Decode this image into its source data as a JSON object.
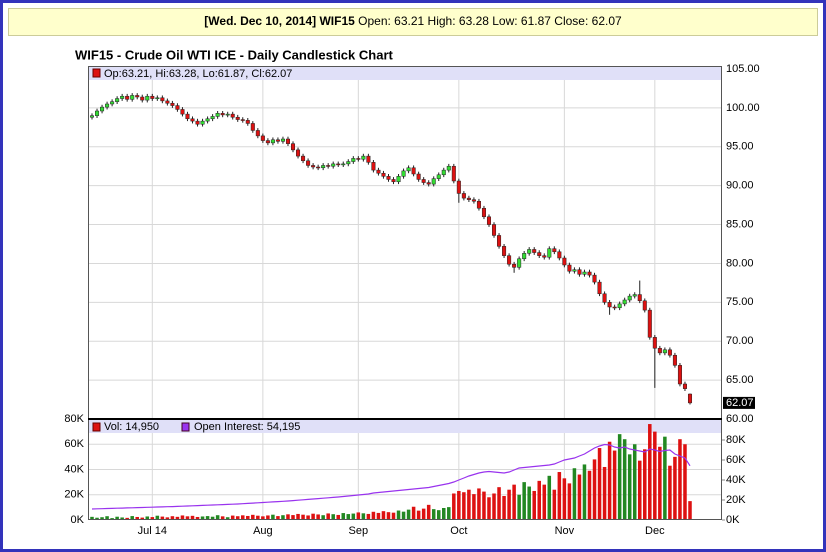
{
  "header": {
    "date_symbol": "[Wed. Dec 10, 2014] WIF15",
    "quote": "Open: 63.21 High: 63.28 Low: 61.87 Close: 62.07"
  },
  "chart_data": {
    "type": "candlestick",
    "title": "WIF15 - Crude Oil WTI ICE - Daily Candlestick Chart",
    "legend_text": "Op:63.21, Hi:63.28, Lo:61.87, Cl:62.07",
    "up_color": "#33dd33",
    "down_color": "#dd1111",
    "grid": true,
    "categories": [
      null,
      null,
      null,
      null,
      null,
      null,
      null,
      null,
      null,
      null,
      null,
      null,
      "Jul 14",
      null,
      null,
      null,
      null,
      null,
      null,
      null,
      null,
      null,
      null,
      null,
      null,
      null,
      null,
      null,
      null,
      null,
      null,
      null,
      null,
      null,
      "Aug",
      null,
      null,
      null,
      null,
      null,
      null,
      null,
      null,
      null,
      null,
      null,
      null,
      null,
      null,
      null,
      null,
      null,
      null,
      "Sep",
      null,
      null,
      null,
      null,
      null,
      null,
      null,
      null,
      null,
      null,
      null,
      null,
      null,
      null,
      null,
      null,
      null,
      null,
      null,
      "Oct",
      null,
      null,
      null,
      null,
      null,
      null,
      null,
      null,
      null,
      null,
      null,
      null,
      null,
      null,
      null,
      null,
      null,
      null,
      null,
      null,
      "Nov",
      null,
      null,
      null,
      null,
      null,
      null,
      null,
      null,
      null,
      null,
      null,
      null,
      null,
      null,
      null,
      null,
      null,
      "Dec",
      null,
      null,
      null,
      null,
      null,
      null,
      null
    ],
    "open": [
      98.8,
      99.0,
      99.6,
      100.1,
      100.5,
      100.8,
      101.2,
      101.5,
      101.1,
      101.6,
      101.4,
      101.0,
      101.5,
      101.2,
      101.3,
      100.9,
      100.6,
      100.3,
      99.8,
      99.2,
      98.6,
      98.3,
      97.9,
      98.3,
      98.6,
      98.9,
      99.3,
      99.1,
      99.2,
      98.8,
      98.5,
      98.4,
      98.0,
      97.1,
      96.4,
      95.8,
      95.5,
      95.9,
      95.7,
      96.0,
      95.4,
      94.6,
      93.8,
      93.2,
      92.6,
      92.4,
      92.3,
      92.6,
      92.5,
      92.8,
      92.7,
      92.8,
      93.1,
      93.5,
      93.4,
      93.8,
      93.0,
      92.0,
      91.6,
      91.2,
      90.8,
      90.5,
      91.2,
      91.9,
      92.3,
      91.5,
      90.8,
      90.4,
      90.2,
      90.9,
      91.4,
      92.0,
      92.5,
      90.6,
      89.0,
      88.4,
      88.2,
      88.0,
      87.1,
      86.0,
      85.0,
      83.6,
      82.2,
      81.0,
      79.9,
      79.5,
      80.6,
      81.3,
      81.8,
      81.4,
      81.0,
      80.8,
      81.9,
      81.5,
      80.7,
      79.8,
      79.0,
      79.2,
      78.6,
      78.9,
      78.5,
      77.6,
      76.1,
      75.0,
      74.4,
      74.3,
      74.8,
      75.3,
      75.8,
      76.0,
      75.2,
      74.0,
      70.5,
      69.1,
      68.5,
      68.9,
      68.2,
      66.9,
      64.5,
      63.21
    ],
    "high": [
      99.3,
      99.9,
      100.4,
      100.8,
      101.1,
      101.5,
      101.8,
      101.8,
      101.9,
      101.9,
      101.7,
      101.8,
      101.8,
      101.6,
      101.6,
      101.2,
      100.9,
      100.6,
      100.1,
      99.5,
      98.9,
      98.6,
      98.6,
      98.9,
      99.2,
      99.6,
      99.6,
      99.5,
      99.5,
      99.1,
      98.8,
      98.7,
      98.3,
      97.4,
      96.7,
      96.1,
      96.2,
      96.2,
      96.3,
      96.3,
      95.7,
      94.9,
      94.1,
      93.5,
      92.9,
      92.7,
      92.9,
      92.9,
      93.1,
      93.1,
      93.1,
      93.4,
      93.8,
      93.8,
      94.1,
      94.1,
      93.3,
      92.3,
      91.9,
      91.5,
      91.1,
      91.5,
      92.2,
      92.6,
      92.6,
      91.8,
      91.1,
      90.7,
      91.2,
      91.7,
      92.3,
      92.8,
      92.8,
      90.9,
      89.3,
      88.7,
      88.5,
      88.3,
      87.4,
      86.3,
      85.3,
      83.9,
      82.5,
      81.3,
      80.2,
      80.9,
      81.6,
      82.1,
      82.1,
      81.7,
      81.3,
      82.2,
      82.2,
      81.8,
      81.0,
      80.1,
      79.5,
      79.5,
      79.2,
      79.2,
      78.8,
      77.9,
      76.4,
      75.3,
      74.7,
      75.1,
      75.6,
      76.1,
      76.3,
      77.8,
      75.5,
      74.3,
      70.8,
      69.4,
      69.2,
      69.2,
      68.5,
      67.2,
      64.8,
      63.28
    ],
    "low": [
      98.5,
      98.7,
      99.3,
      99.8,
      100.2,
      100.5,
      100.9,
      100.8,
      100.8,
      101.1,
      100.7,
      100.7,
      100.9,
      100.9,
      100.6,
      100.3,
      100.0,
      99.5,
      98.9,
      98.3,
      98.0,
      97.6,
      97.6,
      98.0,
      98.3,
      98.6,
      98.8,
      98.8,
      98.5,
      98.2,
      98.1,
      97.7,
      96.8,
      96.1,
      95.5,
      95.2,
      95.2,
      95.4,
      95.4,
      95.1,
      94.3,
      93.5,
      92.9,
      92.3,
      92.1,
      92.0,
      92.0,
      92.2,
      92.2,
      92.4,
      92.4,
      92.5,
      92.8,
      93.1,
      93.1,
      92.7,
      91.7,
      91.3,
      90.9,
      90.5,
      90.2,
      90.2,
      90.9,
      91.6,
      91.2,
      90.5,
      90.1,
      89.9,
      89.9,
      90.6,
      91.1,
      91.7,
      90.3,
      87.8,
      88.1,
      87.9,
      87.7,
      86.8,
      85.7,
      84.7,
      83.3,
      81.9,
      80.7,
      79.6,
      78.8,
      79.2,
      80.3,
      81.0,
      81.1,
      80.7,
      80.5,
      80.5,
      81.2,
      80.4,
      79.5,
      78.7,
      78.7,
      78.3,
      78.3,
      78.2,
      77.3,
      75.8,
      74.7,
      73.4,
      74.0,
      74.0,
      74.5,
      75.0,
      75.5,
      74.9,
      73.7,
      70.2,
      64.0,
      68.2,
      68.2,
      67.9,
      66.6,
      64.2,
      63.6,
      61.87
    ],
    "close": [
      99.0,
      99.6,
      100.1,
      100.5,
      100.8,
      101.2,
      101.5,
      101.1,
      101.6,
      101.4,
      101.0,
      101.5,
      101.2,
      101.3,
      100.9,
      100.6,
      100.3,
      99.8,
      99.2,
      98.6,
      98.3,
      97.9,
      98.3,
      98.6,
      98.9,
      99.3,
      99.1,
      99.2,
      98.8,
      98.5,
      98.4,
      98.0,
      97.1,
      96.4,
      95.8,
      95.5,
      95.9,
      95.7,
      96.0,
      95.4,
      94.6,
      93.8,
      93.2,
      92.6,
      92.4,
      92.3,
      92.6,
      92.5,
      92.8,
      92.7,
      92.8,
      93.1,
      93.5,
      93.4,
      93.8,
      93.0,
      92.0,
      91.6,
      91.2,
      90.8,
      90.5,
      91.2,
      91.9,
      92.3,
      91.5,
      90.8,
      90.4,
      90.2,
      90.9,
      91.4,
      92.0,
      92.5,
      90.6,
      89.0,
      88.4,
      88.2,
      88.0,
      87.1,
      86.0,
      85.0,
      83.6,
      82.2,
      81.0,
      79.9,
      79.5,
      80.6,
      81.3,
      81.8,
      81.4,
      81.0,
      80.8,
      81.9,
      81.5,
      80.7,
      79.8,
      79.0,
      79.2,
      78.6,
      78.9,
      78.5,
      77.6,
      76.1,
      75.0,
      74.4,
      74.3,
      74.8,
      75.3,
      75.8,
      76.0,
      75.2,
      74.0,
      70.5,
      69.1,
      68.5,
      68.9,
      68.2,
      66.9,
      64.5,
      63.9,
      62.07
    ],
    "ylim": [
      60,
      105
    ],
    "yticks": [
      {
        "value": 60,
        "label": "60.00"
      },
      {
        "value": 65,
        "label": "65.00"
      },
      {
        "value": 70,
        "label": "70.00"
      },
      {
        "value": 75,
        "label": "75.00"
      },
      {
        "value": 80,
        "label": "80.00"
      },
      {
        "value": 85,
        "label": "85.00"
      },
      {
        "value": 90,
        "label": "90.00"
      },
      {
        "value": 95,
        "label": "95.00"
      },
      {
        "value": 100,
        "label": "100.00"
      },
      {
        "value": 105,
        "label": "105.00"
      }
    ],
    "volume": {
      "legend": "Vol: 14,950",
      "values": [
        2500,
        1800,
        2200,
        3000,
        1500,
        2600,
        2000,
        1700,
        3100,
        2400,
        1900,
        2800,
        2300,
        3400,
        2700,
        2100,
        3000,
        2500,
        3600,
        2900,
        3300,
        2400,
        2800,
        3100,
        2600,
        3800,
        2900,
        2200,
        3500,
        3000,
        3700,
        3200,
        4100,
        3400,
        2900,
        3600,
        4200,
        3100,
        3800,
        4500,
        3900,
        4800,
        4200,
        3600,
        5000,
        4400,
        3800,
        5200,
        4600,
        4000,
        5500,
        4700,
        5100,
        6000,
        5300,
        4800,
        6500,
        5600,
        7000,
        6200,
        5800,
        7500,
        6600,
        8200,
        10500,
        7400,
        9000,
        12000,
        8600,
        7800,
        9500,
        10200,
        21000,
        23000,
        22000,
        24000,
        20500,
        25000,
        22500,
        18000,
        21000,
        26000,
        19000,
        24000,
        28000,
        20000,
        30000,
        26500,
        23000,
        31000,
        28000,
        35000,
        24000,
        38000,
        33000,
        29000,
        41000,
        36000,
        44000,
        39000,
        48000,
        57000,
        42000,
        62000,
        55000,
        68000,
        64000,
        52000,
        60000,
        47000,
        56000,
        76000,
        70000,
        58000,
        66000,
        43000,
        50000,
        64000,
        60000,
        14950
      ],
      "ylim": [
        0,
        80000
      ],
      "yticks": [
        {
          "value": 0,
          "label": "0K"
        },
        {
          "value": 20000,
          "label": "20K"
        },
        {
          "value": 40000,
          "label": "40K"
        },
        {
          "value": 60000,
          "label": "60K"
        },
        {
          "value": 80000,
          "label": "80K"
        }
      ]
    },
    "open_interest": {
      "legend": "Open Interest: 54,195",
      "color": "#9933ee",
      "axis": "y2",
      "values": [
        11000,
        11200,
        11300,
        11500,
        11600,
        11800,
        11900,
        12100,
        12200,
        12400,
        12500,
        12700,
        12800,
        13000,
        13100,
        13300,
        13400,
        13600,
        13800,
        14000,
        14200,
        14400,
        14600,
        14800,
        15000,
        15200,
        15400,
        15600,
        15800,
        16000,
        16300,
        16600,
        16900,
        17200,
        17500,
        17800,
        18100,
        18400,
        18700,
        19000,
        19400,
        19800,
        20200,
        20600,
        21000,
        21400,
        21800,
        22200,
        22600,
        23000,
        23500,
        24000,
        24500,
        25000,
        25500,
        26000,
        27000,
        27500,
        28000,
        28500,
        29000,
        29500,
        30000,
        30500,
        31000,
        31500,
        32000,
        32500,
        33500,
        34500,
        35500,
        36500,
        38000,
        40000,
        42000,
        44000,
        45500,
        47000,
        48000,
        48500,
        48000,
        47500,
        47000,
        48000,
        50000,
        52000,
        52500,
        53000,
        53500,
        54000,
        54500,
        55000,
        56000,
        58000,
        60000,
        61000,
        62000,
        64000,
        66000,
        69000,
        72000,
        74000,
        75500,
        75000,
        73000,
        72000,
        73000,
        71000,
        70000,
        69000,
        68000,
        71000,
        70000,
        68500,
        69500,
        70000,
        66000,
        64000,
        62000,
        54195
      ],
      "y2lim": [
        0,
        100000
      ],
      "y2ticks": [
        {
          "value": 0,
          "label": "0K"
        },
        {
          "value": 20000,
          "label": "20K"
        },
        {
          "value": 40000,
          "label": "40K"
        },
        {
          "value": 60000,
          "label": "60K"
        },
        {
          "value": 80000,
          "label": "80K"
        }
      ]
    }
  }
}
